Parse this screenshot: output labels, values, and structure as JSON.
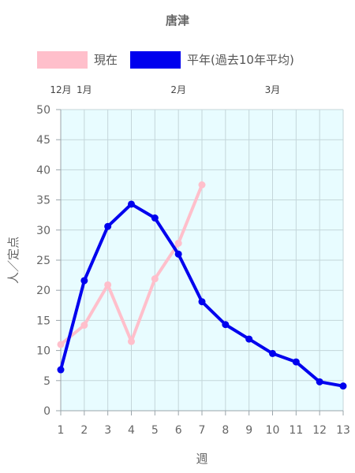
{
  "chart_data": {
    "type": "line",
    "title": "唐津",
    "xlabel": "週",
    "ylabel": "人／定点",
    "x": [
      1,
      2,
      3,
      4,
      5,
      6,
      7,
      8,
      9,
      10,
      11,
      12,
      13
    ],
    "xlim": [
      1,
      13
    ],
    "ylim": [
      0,
      50
    ],
    "yticks": [
      0,
      5,
      10,
      15,
      20,
      25,
      30,
      35,
      40,
      45,
      50
    ],
    "month_labels": [
      {
        "label": "12月",
        "x": 1
      },
      {
        "label": "1月",
        "x": 2
      },
      {
        "label": "2月",
        "x": 6
      },
      {
        "label": "3月",
        "x": 10
      }
    ],
    "grid": true,
    "legend": "top",
    "plot_background": "#e8fcff",
    "series": [
      {
        "name": "現在",
        "color": "#ffbfcb",
        "values": [
          11.0,
          14.2,
          20.9,
          11.5,
          21.9,
          27.8,
          37.5,
          null,
          null,
          null,
          null,
          null,
          null
        ]
      },
      {
        "name": "平年(過去10年平均)",
        "color": "#0000ee",
        "values": [
          6.8,
          21.6,
          30.6,
          34.3,
          32.0,
          26.0,
          18.1,
          14.3,
          11.9,
          9.5,
          8.1,
          4.8,
          4.1
        ]
      }
    ]
  }
}
